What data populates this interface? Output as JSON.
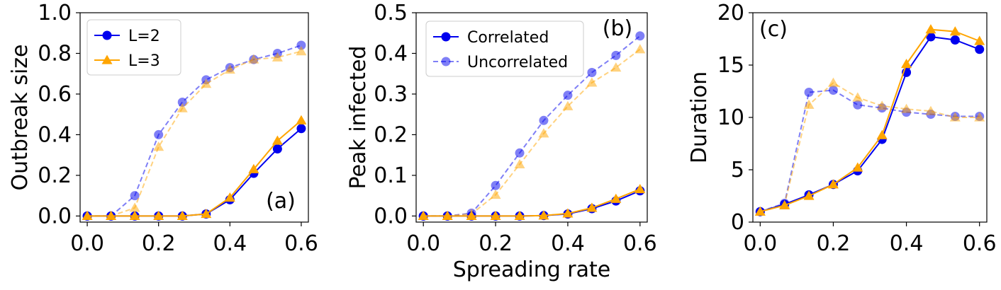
{
  "colors": {
    "l2": "#0000ee",
    "l3": "#ffa500",
    "axis": "#000000"
  },
  "panels": [
    {
      "label": "(a)",
      "ylabel": "Outbreak size",
      "xlabel": "",
      "legend": {
        "position": "upper-left",
        "entries": [
          "L=2",
          "L=3"
        ]
      }
    },
    {
      "label": "(b)",
      "ylabel": "Peak infected",
      "xlabel": "Spreading rate",
      "legend": {
        "position": "upper-left",
        "entries": [
          "Correlated",
          "Uncorrelated"
        ]
      }
    },
    {
      "label": "(c)",
      "ylabel": "Duration",
      "xlabel": "",
      "legend": {
        "position": "none",
        "entries": []
      }
    }
  ],
  "chart_data": [
    {
      "type": "line",
      "ylabel": "Outbreak size",
      "xlim": [
        -0.02,
        0.62
      ],
      "ylim": [
        -0.03,
        1.0
      ],
      "xticks": [
        "0.0",
        "0.2",
        "0.4",
        "0.6"
      ],
      "xtick_values": [
        0.0,
        0.2,
        0.4,
        0.6
      ],
      "yticks": [
        "0.0",
        "0.2",
        "0.4",
        "0.6",
        "0.8",
        "1.0"
      ],
      "ytick_values": [
        0.0,
        0.2,
        0.4,
        0.6,
        0.8,
        1.0
      ],
      "x": [
        0,
        0.0667,
        0.1333,
        0.2,
        0.2667,
        0.3333,
        0.4,
        0.4667,
        0.5333,
        0.6
      ],
      "series": [
        {
          "name": "L=2",
          "color": "#0000ee",
          "marker": "circle",
          "style": "solid",
          "values": [
            0,
            0,
            0,
            0,
            0,
            0.01,
            0.08,
            0.21,
            0.33,
            0.43
          ]
        },
        {
          "name": "L=3",
          "color": "#ffa500",
          "marker": "triangle",
          "style": "solid",
          "values": [
            0,
            0,
            0,
            0,
            0,
            0.01,
            0.09,
            0.23,
            0.37,
            0.47
          ]
        },
        {
          "color": "#0000ee",
          "marker": "circle",
          "style": "dashed",
          "values": [
            0,
            0,
            0.1,
            0.4,
            0.56,
            0.67,
            0.73,
            0.77,
            0.8,
            0.84
          ]
        },
        {
          "color": "#ffa500",
          "marker": "triangle",
          "style": "dashed",
          "values": [
            0,
            0,
            0.04,
            0.34,
            0.53,
            0.65,
            0.72,
            0.77,
            0.78,
            0.81
          ]
        }
      ]
    },
    {
      "type": "line",
      "ylabel": "Peak infected",
      "xlabel": "Spreading rate",
      "xlim": [
        -0.02,
        0.62
      ],
      "ylim": [
        -0.015,
        0.5
      ],
      "xticks": [
        "0.0",
        "0.2",
        "0.4",
        "0.6"
      ],
      "xtick_values": [
        0.0,
        0.2,
        0.4,
        0.6
      ],
      "yticks": [
        "0.0",
        "0.1",
        "0.2",
        "0.3",
        "0.4",
        "0.5"
      ],
      "ytick_values": [
        0.0,
        0.1,
        0.2,
        0.3,
        0.4,
        0.5
      ],
      "x": [
        0,
        0.0667,
        0.1333,
        0.2,
        0.2667,
        0.3333,
        0.4,
        0.4667,
        0.5333,
        0.6
      ],
      "series": [
        {
          "name": "Correlated",
          "color": "#0000ee",
          "marker": "circle",
          "style": "solid",
          "values": [
            0,
            0,
            0,
            0,
            0,
            0.001,
            0.005,
            0.018,
            0.037,
            0.062
          ]
        },
        {
          "color": "#ffa500",
          "marker": "triangle",
          "style": "solid",
          "values": [
            0,
            0,
            0,
            0,
            0,
            0.001,
            0.006,
            0.02,
            0.042,
            0.066
          ]
        },
        {
          "name": "Uncorrelated",
          "color": "#0000ee",
          "marker": "circle",
          "style": "dashed",
          "values": [
            0,
            0,
            0.007,
            0.075,
            0.155,
            0.235,
            0.297,
            0.353,
            0.395,
            0.443
          ]
        },
        {
          "color": "#ffa500",
          "marker": "triangle",
          "style": "dashed",
          "values": [
            0,
            0,
            0.005,
            0.052,
            0.127,
            0.203,
            0.27,
            0.328,
            0.365,
            0.41
          ]
        }
      ]
    },
    {
      "type": "line",
      "ylabel": "Duration",
      "xlim": [
        -0.02,
        0.62
      ],
      "ylim": [
        0,
        20
      ],
      "xticks": [
        "0.0",
        "0.2",
        "0.4",
        "0.6"
      ],
      "xtick_values": [
        0.0,
        0.2,
        0.4,
        0.6
      ],
      "yticks": [
        "0",
        "5",
        "10",
        "15",
        "20"
      ],
      "ytick_values": [
        0,
        5,
        10,
        15,
        20
      ],
      "x": [
        0,
        0.0667,
        0.1333,
        0.2,
        0.2667,
        0.3333,
        0.4,
        0.4667,
        0.5333,
        0.6
      ],
      "series": [
        {
          "color": "#0000ee",
          "marker": "circle",
          "style": "solid",
          "values": [
            1.0,
            1.7,
            2.6,
            3.6,
            4.9,
            7.9,
            14.3,
            17.7,
            17.4,
            16.5
          ]
        },
        {
          "color": "#ffa500",
          "marker": "triangle",
          "style": "solid",
          "values": [
            1.0,
            1.6,
            2.5,
            3.6,
            5.2,
            8.3,
            15.1,
            18.4,
            18.2,
            17.3
          ]
        },
        {
          "color": "#0000ee",
          "marker": "circle",
          "style": "dashed",
          "values": [
            1.0,
            1.8,
            12.4,
            12.6,
            11.2,
            10.9,
            10.5,
            10.3,
            10.1,
            10.1
          ]
        },
        {
          "color": "#ffa500",
          "marker": "triangle",
          "style": "dashed",
          "values": [
            1.0,
            1.7,
            11.2,
            13.3,
            11.9,
            11.1,
            10.8,
            10.6,
            10.0,
            10.0
          ]
        }
      ]
    }
  ]
}
